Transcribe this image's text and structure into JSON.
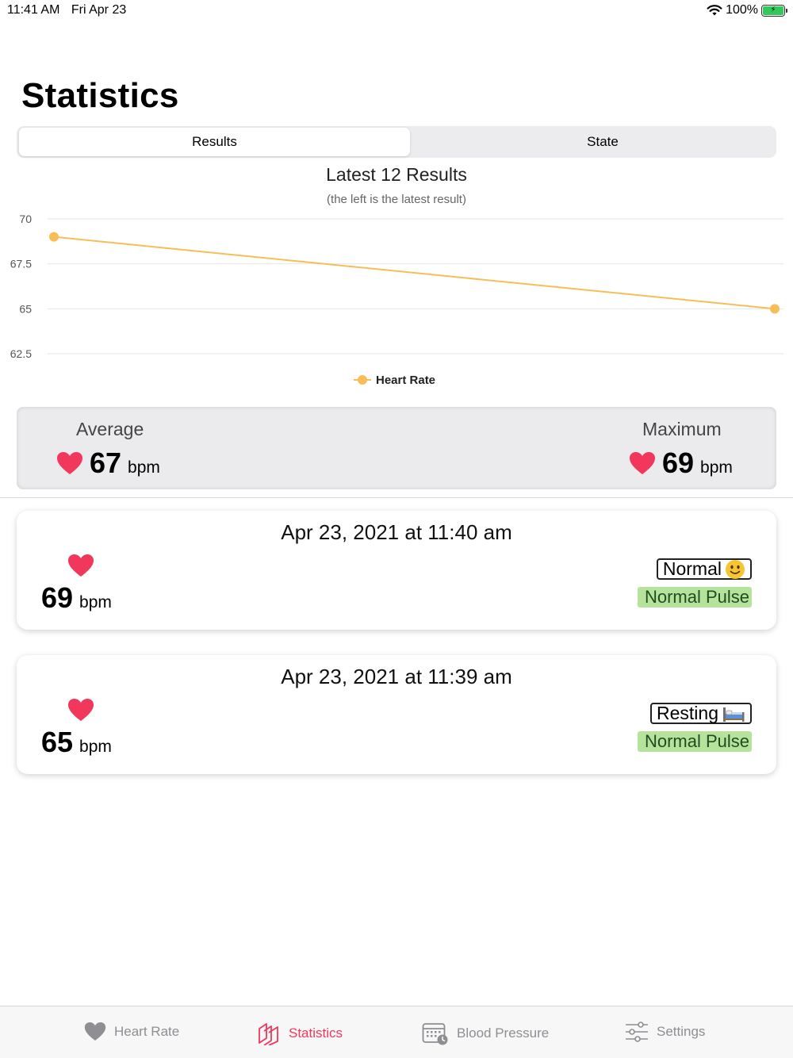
{
  "status_bar": {
    "time": "11:41 AM",
    "date": "Fri Apr 23",
    "battery": "100%"
  },
  "page": {
    "title": "Statistics"
  },
  "segmented": {
    "selected": "Results",
    "options": [
      "Results",
      "State"
    ]
  },
  "chart_data": {
    "type": "line",
    "title": "Latest 12 Results",
    "subtitle": "(the left is the latest result)",
    "y_ticks": [
      "70",
      "67.5",
      "65",
      "62.5"
    ],
    "ylim": [
      62.5,
      70
    ],
    "grid": true,
    "legend_position": "bottom",
    "series": [
      {
        "name": "Heart Rate",
        "color": "#f9bd58",
        "values": [
          69,
          65
        ]
      }
    ]
  },
  "summary": {
    "average": {
      "label": "Average",
      "value": "67",
      "unit": "bpm"
    },
    "maximum": {
      "label": "Maximum",
      "value": "69",
      "unit": "bpm"
    }
  },
  "results": [
    {
      "date": "Apr 23, 2021  at 11:40 am",
      "bpm": "69",
      "unit": "bpm",
      "state": "Normal",
      "state_icon": "slightly-smiling-face-icon",
      "pulse": "Normal Pulse"
    },
    {
      "date": "Apr 23, 2021  at 11:39 am",
      "bpm": "65",
      "unit": "bpm",
      "state": "Resting",
      "state_icon": "bed-icon",
      "pulse": "Normal Pulse"
    }
  ],
  "colors": {
    "accent": "#f2375c",
    "heart": "#f2375c",
    "line": "#f9bd58",
    "pulse_bg": "#b6e39c"
  },
  "tab_bar": {
    "tabs": [
      {
        "label": "Heart Rate",
        "icon": "heart-icon"
      },
      {
        "label": "Statistics",
        "icon": "statistics-icon",
        "active": true
      },
      {
        "label": "Blood Pressure",
        "icon": "calendar-clock-icon"
      },
      {
        "label": "Settings",
        "icon": "sliders-icon"
      }
    ]
  }
}
